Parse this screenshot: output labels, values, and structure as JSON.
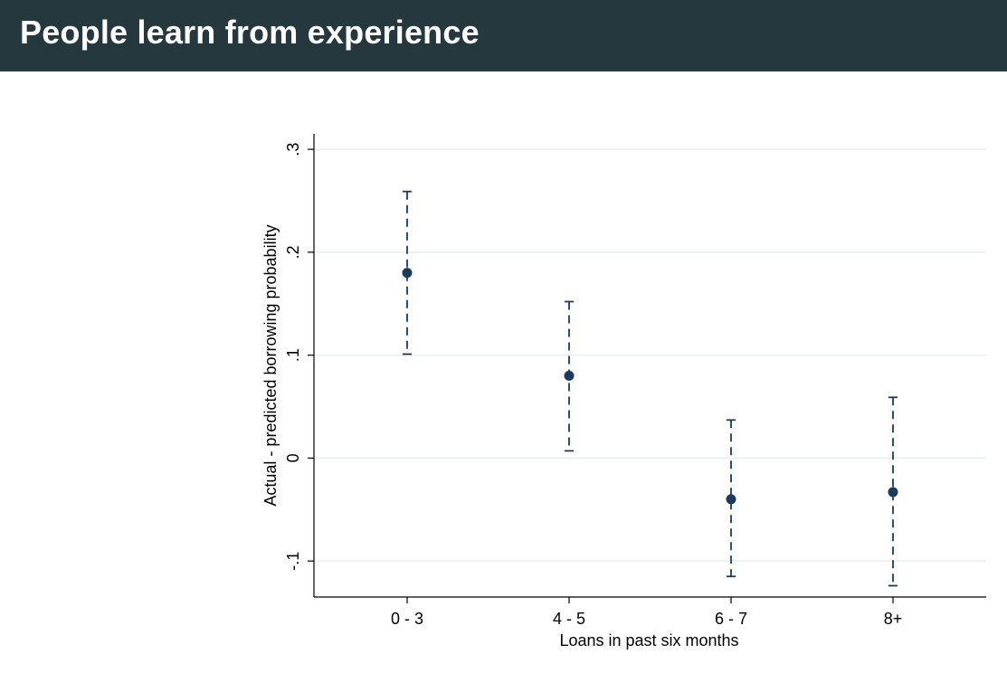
{
  "header": {
    "title": "People learn from experience"
  },
  "colors": {
    "header_bg": "#25383d",
    "header_text": "#ffffff",
    "marker": "#1a3b5d",
    "errorbar": "#1a3b5d",
    "grid": "#e8eef0",
    "axis": "#000000"
  },
  "chart_data": {
    "type": "scatter",
    "title": "",
    "xlabel": "Loans in past six months",
    "ylabel": "Actual - predicted borrowing probability",
    "categories": [
      "0 - 3",
      "4 - 5",
      "6 - 7",
      "8+"
    ],
    "series": [
      {
        "values": [
          0.18,
          0.08,
          -0.04,
          -0.033
        ],
        "ci_low": [
          0.101,
          0.007,
          -0.115,
          -0.124
        ],
        "ci_high": [
          0.259,
          0.152,
          0.037,
          0.059
        ]
      }
    ],
    "yticks": [
      -0.1,
      0,
      0.1,
      0.2,
      0.3
    ],
    "ytick_labels": [
      "-.1",
      "0",
      ".1",
      ".2",
      ".3"
    ],
    "ylim": [
      -0.135,
      0.315
    ],
    "grid": true,
    "errorbar_style": "dashed with caps"
  }
}
